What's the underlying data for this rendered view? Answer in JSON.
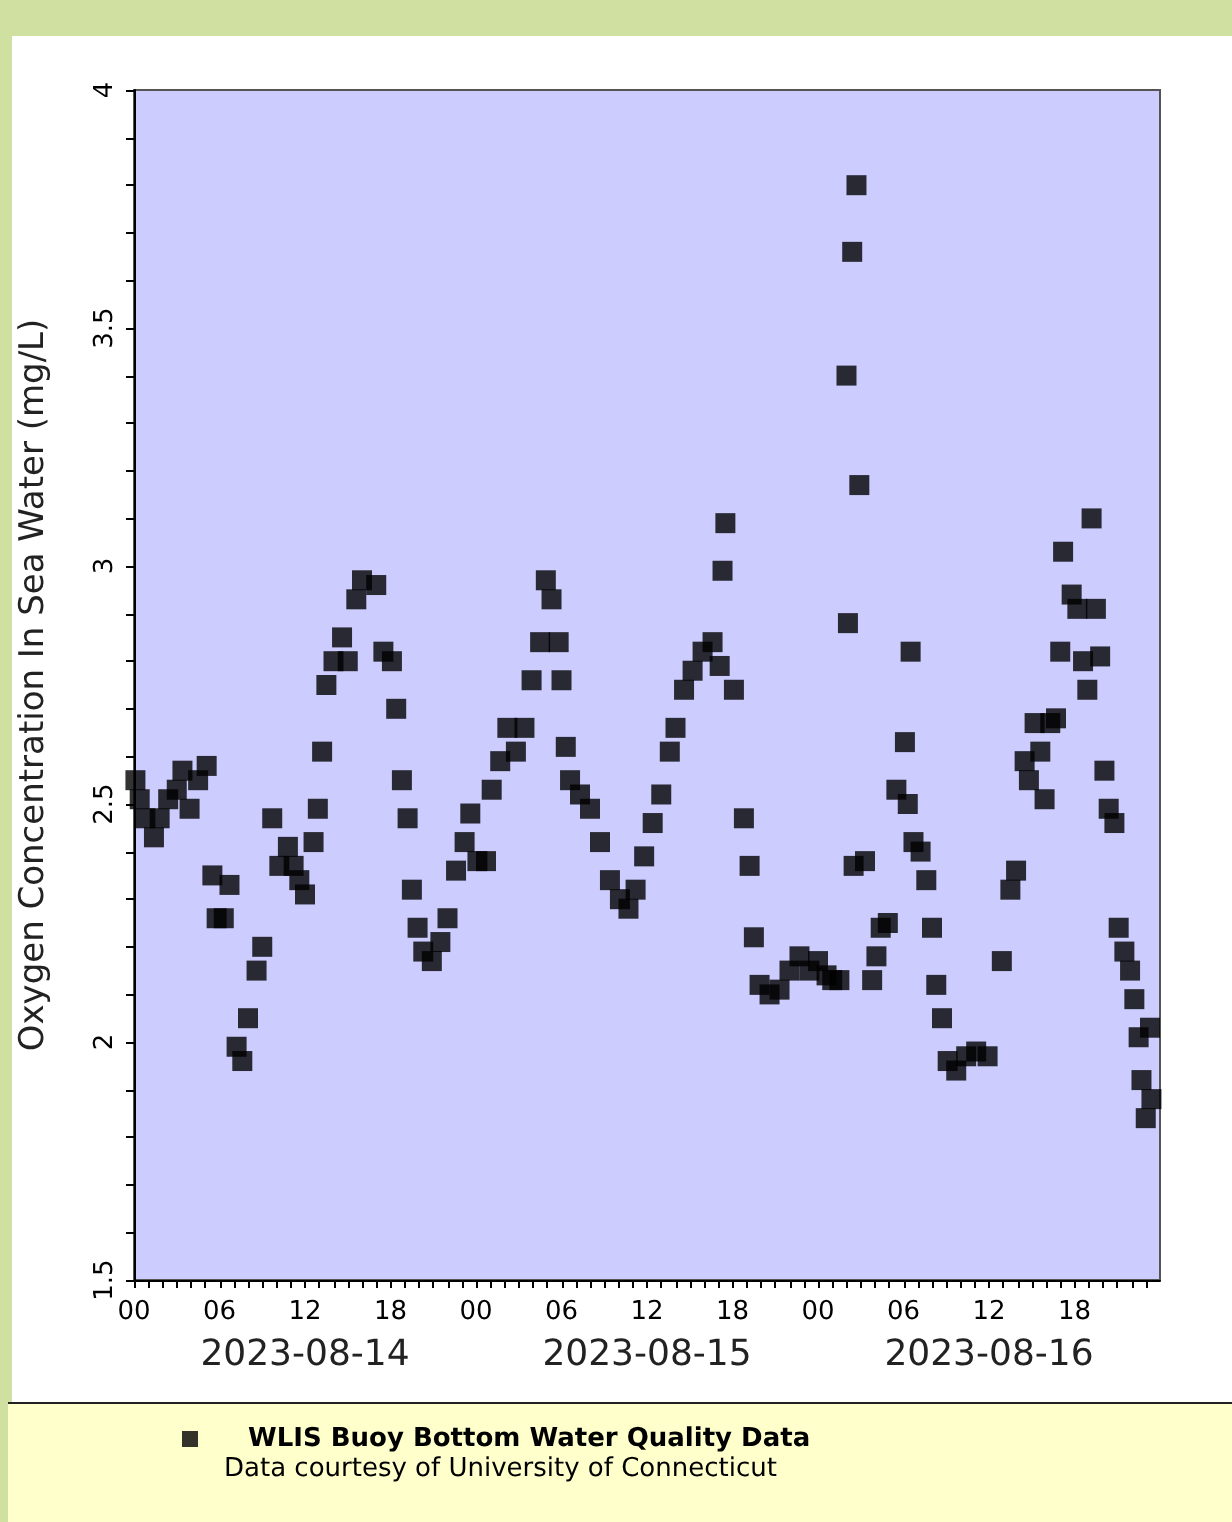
{
  "chart_data": {
    "type": "scatter",
    "ylabel": "Oxygen Concentration In Sea Water (mg/L)",
    "annotations": [
      "Data courtesy of University of Connecticut"
    ],
    "xlim": [
      "2023-08-14T00:00",
      "2023-08-17T00:00"
    ],
    "xticks": [
      {
        "value": "2023-08-14T00:00",
        "label": "00"
      },
      {
        "value": "2023-08-14T06:00",
        "label": "06"
      },
      {
        "value": "2023-08-14T12:00",
        "label": "12"
      },
      {
        "value": "2023-08-14T18:00",
        "label": "18"
      },
      {
        "value": "2023-08-15T00:00",
        "label": "00"
      },
      {
        "value": "2023-08-15T06:00",
        "label": "06"
      },
      {
        "value": "2023-08-15T12:00",
        "label": "12"
      },
      {
        "value": "2023-08-15T18:00",
        "label": "18"
      },
      {
        "value": "2023-08-16T00:00",
        "label": "00"
      },
      {
        "value": "2023-08-16T06:00",
        "label": "06"
      },
      {
        "value": "2023-08-16T12:00",
        "label": "12"
      },
      {
        "value": "2023-08-16T18:00",
        "label": "18"
      },
      {
        "value": "2023-08-14T01:00",
        "label": null
      },
      {
        "value": "2023-08-14T02:00",
        "label": null
      },
      {
        "value": "2023-08-14T03:00",
        "label": null
      },
      {
        "value": "2023-08-14T04:00",
        "label": null
      },
      {
        "value": "2023-08-14T05:00",
        "label": null
      },
      {
        "value": "2023-08-14T07:00",
        "label": null
      },
      {
        "value": "2023-08-14T08:00",
        "label": null
      },
      {
        "value": "2023-08-14T09:00",
        "label": null
      },
      {
        "value": "2023-08-14T10:00",
        "label": null
      },
      {
        "value": "2023-08-14T11:00",
        "label": null
      },
      {
        "value": "2023-08-14T13:00",
        "label": null
      },
      {
        "value": "2023-08-14T14:00",
        "label": null
      },
      {
        "value": "2023-08-14T15:00",
        "label": null
      },
      {
        "value": "2023-08-14T16:00",
        "label": null
      },
      {
        "value": "2023-08-14T17:00",
        "label": null
      },
      {
        "value": "2023-08-14T19:00",
        "label": null
      },
      {
        "value": "2023-08-14T20:00",
        "label": null
      },
      {
        "value": "2023-08-14T21:00",
        "label": null
      },
      {
        "value": "2023-08-14T22:00",
        "label": null
      },
      {
        "value": "2023-08-14T23:00",
        "label": null
      },
      {
        "value": "2023-08-15T01:00",
        "label": null
      },
      {
        "value": "2023-08-15T02:00",
        "label": null
      },
      {
        "value": "2023-08-15T03:00",
        "label": null
      },
      {
        "value": "2023-08-15T04:00",
        "label": null
      },
      {
        "value": "2023-08-15T05:00",
        "label": null
      },
      {
        "value": "2023-08-15T07:00",
        "label": null
      },
      {
        "value": "2023-08-15T08:00",
        "label": null
      },
      {
        "value": "2023-08-15T09:00",
        "label": null
      },
      {
        "value": "2023-08-15T10:00",
        "label": null
      },
      {
        "value": "2023-08-15T11:00",
        "label": null
      },
      {
        "value": "2023-08-15T13:00",
        "label": null
      },
      {
        "value": "2023-08-15T14:00",
        "label": null
      },
      {
        "value": "2023-08-15T15:00",
        "label": null
      },
      {
        "value": "2023-08-15T16:00",
        "label": null
      },
      {
        "value": "2023-08-15T17:00",
        "label": null
      },
      {
        "value": "2023-08-15T19:00",
        "label": null
      },
      {
        "value": "2023-08-15T20:00",
        "label": null
      },
      {
        "value": "2023-08-15T21:00",
        "label": null
      },
      {
        "value": "2023-08-15T22:00",
        "label": null
      },
      {
        "value": "2023-08-15T23:00",
        "label": null
      },
      {
        "value": "2023-08-16T01:00",
        "label": null
      },
      {
        "value": "2023-08-16T02:00",
        "label": null
      },
      {
        "value": "2023-08-16T03:00",
        "label": null
      },
      {
        "value": "2023-08-16T04:00",
        "label": null
      },
      {
        "value": "2023-08-16T05:00",
        "label": null
      },
      {
        "value": "2023-08-16T07:00",
        "label": null
      },
      {
        "value": "2023-08-16T08:00",
        "label": null
      },
      {
        "value": "2023-08-16T09:00",
        "label": null
      },
      {
        "value": "2023-08-16T10:00",
        "label": null
      },
      {
        "value": "2023-08-16T11:00",
        "label": null
      },
      {
        "value": "2023-08-16T13:00",
        "label": null
      },
      {
        "value": "2023-08-16T14:00",
        "label": null
      },
      {
        "value": "2023-08-16T15:00",
        "label": null
      },
      {
        "value": "2023-08-16T16:00",
        "label": null
      },
      {
        "value": "2023-08-16T17:00",
        "label": null
      },
      {
        "value": "2023-08-16T19:00",
        "label": null
      },
      {
        "value": "2023-08-16T20:00",
        "label": null
      },
      {
        "value": "2023-08-16T21:00",
        "label": null
      },
      {
        "value": "2023-08-16T22:00",
        "label": null
      },
      {
        "value": "2023-08-16T23:00",
        "label": null
      }
    ],
    "x2lim": [
      "2023-08-14T00:00",
      "2023-08-17T00:00"
    ],
    "x2ticks": [
      {
        "value": "2023-08-14T12:00",
        "label": "2023-08-14"
      },
      {
        "value": "2023-08-15T12:00",
        "label": "2023-08-15"
      },
      {
        "value": "2023-08-16T12:00",
        "label": "2023-08-16"
      }
    ],
    "ylim": [
      1.5,
      4
    ],
    "yticks": [
      1.5,
      {
        "value": 1.6,
        "label": null
      },
      {
        "value": 1.7,
        "label": null
      },
      {
        "value": 1.8,
        "label": null
      },
      {
        "value": 1.9,
        "label": null
      },
      2,
      {
        "value": 2.1,
        "label": null
      },
      {
        "value": 2.2,
        "label": null
      },
      {
        "value": 2.3,
        "label": null
      },
      {
        "value": 2.4,
        "label": null
      },
      2.5,
      {
        "value": 2.6,
        "label": null
      },
      {
        "value": 2.7,
        "label": null
      },
      {
        "value": 2.8,
        "label": null
      },
      {
        "value": 2.9,
        "label": null
      },
      3,
      {
        "value": 3.1,
        "label": null
      },
      {
        "value": 3.2,
        "label": null
      },
      {
        "value": 3.3,
        "label": null
      },
      {
        "value": 3.4,
        "label": null
      },
      3.5,
      {
        "value": 3.6,
        "label": null
      },
      {
        "value": 3.7,
        "label": null
      },
      {
        "value": 3.8,
        "label": null
      },
      {
        "value": 3.9,
        "label": null
      },
      4
    ],
    "grid": false,
    "legend": "bottom",
    "marker": "square",
    "series": [
      {
        "name": "WLIS Buoy Bottom Water Quality Data",
        "color": "#000000",
        "x": [
          "2023-08-14T00:06",
          "2023-08-14T00:24",
          "2023-08-14T00:48",
          "2023-08-14T01:24",
          "2023-08-14T01:48",
          "2023-08-14T02:24",
          "2023-08-14T03:00",
          "2023-08-14T03:24",
          "2023-08-14T03:54",
          "2023-08-14T04:30",
          "2023-08-14T05:06",
          "2023-08-14T05:30",
          "2023-08-14T05:48",
          "2023-08-14T06:18",
          "2023-08-14T06:42",
          "2023-08-14T07:12",
          "2023-08-14T07:36",
          "2023-08-14T08:00",
          "2023-08-14T08:36",
          "2023-08-14T09:00",
          "2023-08-14T09:42",
          "2023-08-14T10:12",
          "2023-08-14T10:48",
          "2023-08-14T11:12",
          "2023-08-14T11:36",
          "2023-08-14T12:00",
          "2023-08-14T12:36",
          "2023-08-14T12:54",
          "2023-08-14T13:12",
          "2023-08-14T13:30",
          "2023-08-14T14:00",
          "2023-08-14T14:36",
          "2023-08-14T15:00",
          "2023-08-14T15:36",
          "2023-08-14T16:00",
          "2023-08-14T17:00",
          "2023-08-14T17:30",
          "2023-08-14T18:06",
          "2023-08-14T18:24",
          "2023-08-14T18:48",
          "2023-08-14T19:12",
          "2023-08-14T19:30",
          "2023-08-14T19:54",
          "2023-08-14T20:18",
          "2023-08-14T20:54",
          "2023-08-14T21:30",
          "2023-08-14T22:00",
          "2023-08-14T22:36",
          "2023-08-14T23:12",
          "2023-08-14T23:36",
          "2023-08-15T00:06",
          "2023-08-15T00:42",
          "2023-08-15T01:06",
          "2023-08-15T01:42",
          "2023-08-15T02:12",
          "2023-08-15T02:48",
          "2023-08-15T03:24",
          "2023-08-15T03:54",
          "2023-08-15T04:30",
          "2023-08-15T04:54",
          "2023-08-15T05:18",
          "2023-08-15T05:48",
          "2023-08-15T06:00",
          "2023-08-15T06:18",
          "2023-08-15T06:36",
          "2023-08-15T07:18",
          "2023-08-15T08:00",
          "2023-08-15T08:42",
          "2023-08-15T09:24",
          "2023-08-15T10:06",
          "2023-08-15T10:42",
          "2023-08-15T11:12",
          "2023-08-15T11:48",
          "2023-08-15T12:24",
          "2023-08-15T13:00",
          "2023-08-15T13:36",
          "2023-08-15T14:00",
          "2023-08-15T14:36",
          "2023-08-15T15:12",
          "2023-08-15T15:54",
          "2023-08-15T16:36",
          "2023-08-15T17:06",
          "2023-08-15T17:18",
          "2023-08-15T17:30",
          "2023-08-15T18:06",
          "2023-08-15T18:48",
          "2023-08-15T19:12",
          "2023-08-15T19:30",
          "2023-08-15T19:54",
          "2023-08-15T20:36",
          "2023-08-15T21:18",
          "2023-08-15T22:00",
          "2023-08-15T22:42",
          "2023-08-15T23:24",
          "2023-08-16T00:00",
          "2023-08-16T00:36",
          "2023-08-16T01:00",
          "2023-08-16T01:30",
          "2023-08-16T02:00",
          "2023-08-16T02:06",
          "2023-08-16T02:24",
          "2023-08-16T02:30",
          "2023-08-16T02:42",
          "2023-08-16T02:54",
          "2023-08-16T03:18",
          "2023-08-16T03:48",
          "2023-08-16T04:06",
          "2023-08-16T04:24",
          "2023-08-16T04:54",
          "2023-08-16T05:30",
          "2023-08-16T06:06",
          "2023-08-16T06:18",
          "2023-08-16T06:30",
          "2023-08-16T06:42",
          "2023-08-16T07:12",
          "2023-08-16T07:36",
          "2023-08-16T08:00",
          "2023-08-16T08:18",
          "2023-08-16T08:42",
          "2023-08-16T09:06",
          "2023-08-16T09:42",
          "2023-08-16T10:24",
          "2023-08-16T11:06",
          "2023-08-16T11:54",
          "2023-08-16T12:54",
          "2023-08-16T13:30",
          "2023-08-16T13:54",
          "2023-08-16T14:30",
          "2023-08-16T14:48",
          "2023-08-16T15:12",
          "2023-08-16T15:36",
          "2023-08-16T15:54",
          "2023-08-16T16:18",
          "2023-08-16T16:42",
          "2023-08-16T17:00",
          "2023-08-16T17:12",
          "2023-08-16T17:48",
          "2023-08-16T18:12",
          "2023-08-16T18:36",
          "2023-08-16T18:54",
          "2023-08-16T19:12",
          "2023-08-16T19:30",
          "2023-08-16T19:48",
          "2023-08-16T20:06",
          "2023-08-16T20:24",
          "2023-08-16T20:48",
          "2023-08-16T21:06",
          "2023-08-16T21:30",
          "2023-08-16T21:54",
          "2023-08-16T22:12",
          "2023-08-16T22:30",
          "2023-08-16T22:42",
          "2023-08-16T23:00",
          "2023-08-16T23:18",
          "2023-08-16T23:24"
        ],
        "values": [
          2.55,
          2.51,
          2.47,
          2.43,
          2.47,
          2.51,
          2.53,
          2.57,
          2.49,
          2.55,
          2.58,
          2.35,
          2.26,
          2.26,
          2.33,
          1.99,
          1.96,
          2.05,
          2.15,
          2.2,
          2.47,
          2.37,
          2.41,
          2.37,
          2.34,
          2.31,
          2.42,
          2.49,
          2.61,
          2.75,
          2.8,
          2.85,
          2.8,
          2.93,
          2.97,
          2.96,
          2.82,
          2.8,
          2.7,
          2.55,
          2.47,
          2.32,
          2.24,
          2.19,
          2.17,
          2.21,
          2.26,
          2.36,
          2.42,
          2.48,
          2.38,
          2.38,
          2.53,
          2.59,
          2.66,
          2.61,
          2.66,
          2.76,
          2.84,
          2.97,
          2.93,
          2.84,
          2.76,
          2.62,
          2.55,
          2.52,
          2.49,
          2.42,
          2.34,
          2.3,
          2.28,
          2.32,
          2.39,
          2.46,
          2.52,
          2.61,
          2.66,
          2.74,
          2.78,
          2.82,
          2.84,
          2.79,
          2.99,
          3.09,
          2.74,
          2.47,
          2.37,
          2.22,
          2.12,
          2.1,
          2.11,
          2.15,
          2.18,
          2.15,
          2.17,
          2.14,
          2.13,
          2.13,
          3.4,
          2.88,
          3.66,
          2.37,
          3.8,
          3.17,
          2.38,
          2.13,
          2.18,
          2.24,
          2.25,
          2.53,
          2.63,
          2.5,
          2.82,
          2.42,
          2.4,
          2.34,
          2.24,
          2.12,
          2.05,
          1.96,
          1.94,
          1.97,
          1.98,
          1.97,
          2.17,
          2.32,
          2.36,
          2.59,
          2.55,
          2.67,
          2.61,
          2.51,
          2.67,
          2.68,
          2.82,
          3.03,
          2.94,
          2.91,
          2.8,
          2.74,
          3.1,
          2.91,
          2.81,
          2.57,
          2.49,
          2.46,
          2.24,
          2.19,
          2.15,
          2.09,
          2.01,
          1.92,
          1.84,
          2.03,
          1.88
        ]
      }
    ]
  }
}
